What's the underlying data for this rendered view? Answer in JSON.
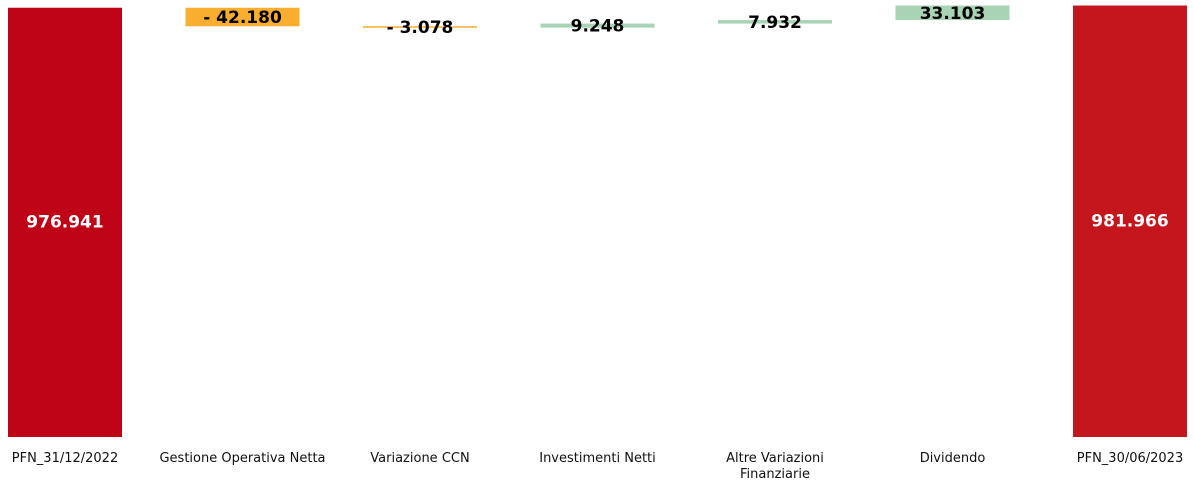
{
  "chart_data": {
    "type": "waterfall",
    "categories": [
      "PFN_31/12/2022",
      "Gestione Operativa Netta",
      "Variazione CCN",
      "Investimenti Netti",
      "Altre Variazioni Finanziarie",
      "Dividendo",
      "PFN_30/06/2023"
    ],
    "measure": [
      "absolute",
      "relative",
      "relative",
      "relative",
      "relative",
      "relative",
      "absolute"
    ],
    "values": [
      976941,
      -42180,
      -3078,
      9248,
      7932,
      33103,
      981966
    ],
    "value_labels": [
      "976.941",
      "- 42.180",
      "- 3.078",
      "9.248",
      "7.932",
      "33.103",
      "981.966"
    ],
    "colors": [
      "#c00418",
      "#f9ae2f",
      "#f9ae2f",
      "#a9d3b5",
      "#a9d3b5",
      "#a9d3b5",
      "#c4161c"
    ],
    "ylim": [
      0,
      990000
    ]
  }
}
